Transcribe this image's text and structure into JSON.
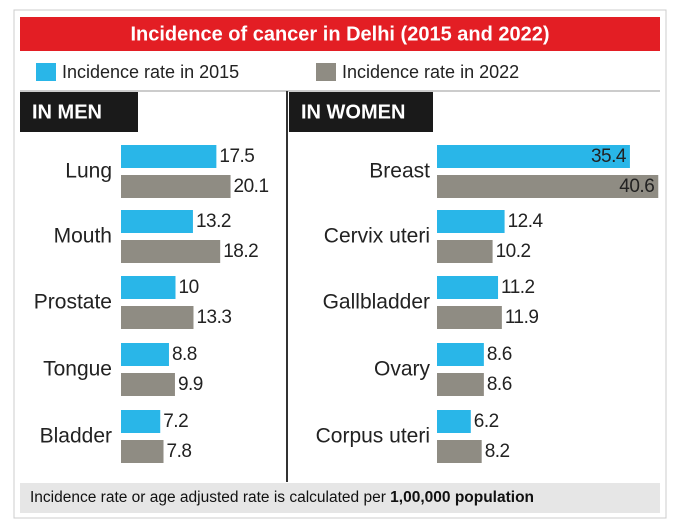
{
  "title": "Incidence of cancer in Delhi (2015 and 2022)",
  "note": "Incidence rate or age adjusted rate is calculated per",
  "note_bold": "1,00,000 population",
  "chart_data": [
    {
      "type": "bar",
      "orientation": "horizontal",
      "title": "IN MEN",
      "categories": [
        "Lung",
        "Mouth",
        "Prostate",
        "Tongue",
        "Bladder"
      ],
      "series": [
        {
          "name": "Incidence rate in 2015",
          "color": "#29b6e8",
          "values": [
            17.5,
            13.2,
            10,
            8.8,
            7.2
          ]
        },
        {
          "name": "Incidence rate in 2022",
          "color": "#8f8c83",
          "values": [
            20.1,
            18.2,
            13.3,
            9.9,
            7.8
          ]
        }
      ]
    },
    {
      "type": "bar",
      "orientation": "horizontal",
      "title": "IN WOMEN",
      "categories": [
        "Breast",
        "Cervix uteri",
        "Gallbladder",
        "Ovary",
        "Corpus uteri"
      ],
      "series": [
        {
          "name": "Incidence rate in 2015",
          "color": "#29b6e8",
          "values": [
            35.4,
            12.4,
            11.2,
            8.6,
            6.2
          ]
        },
        {
          "name": "Incidence rate in 2022",
          "color": "#8f8c83",
          "values": [
            40.6,
            10.2,
            11.9,
            8.6,
            8.2
          ]
        }
      ]
    }
  ]
}
